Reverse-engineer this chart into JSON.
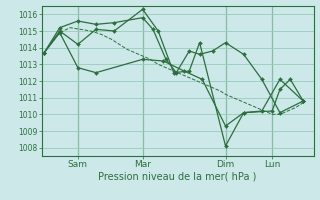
{
  "bg_color": "#cce8e8",
  "grid_color": "#99ccbb",
  "line_color": "#2d6e3e",
  "xlabel": "Pression niveau de la mer( hPa )",
  "ylim": [
    1007.5,
    1016.5
  ],
  "yticks": [
    1008,
    1009,
    1010,
    1011,
    1012,
    1013,
    1014,
    1015,
    1016
  ],
  "xtick_labels": [
    "Sam",
    "Mar",
    "Dim",
    "Lun"
  ],
  "vline_x": [
    0.13,
    0.38,
    0.7,
    0.88
  ],
  "series": [
    {
      "x": [
        0.0,
        0.06,
        0.1,
        0.14,
        0.18,
        0.22,
        0.26,
        0.29,
        0.32,
        0.35,
        0.38,
        0.41,
        0.44,
        0.47,
        0.5,
        0.53,
        0.56,
        0.59,
        0.62,
        0.65,
        0.68,
        0.7,
        0.73,
        0.76,
        0.79,
        0.82,
        0.85,
        0.88,
        0.91,
        0.94,
        0.97,
        1.0
      ],
      "y": [
        1013.7,
        1014.9,
        1015.2,
        1015.1,
        1015.0,
        1014.8,
        1014.5,
        1014.2,
        1013.9,
        1013.7,
        1013.5,
        1013.3,
        1013.0,
        1012.8,
        1012.6,
        1012.4,
        1012.2,
        1012.0,
        1011.8,
        1011.6,
        1011.4,
        1011.2,
        1011.0,
        1010.8,
        1010.6,
        1010.4,
        1010.2,
        1010.0,
        1010.0,
        1010.2,
        1010.4,
        1010.7
      ],
      "dashed": true,
      "has_markers": false
    },
    {
      "x": [
        0.0,
        0.06,
        0.13,
        0.2,
        0.38,
        0.46,
        0.54,
        0.61,
        0.7,
        0.77,
        0.84,
        0.91,
        1.0
      ],
      "y": [
        1013.7,
        1014.9,
        1012.8,
        1012.5,
        1013.3,
        1013.2,
        1012.6,
        1012.1,
        1009.3,
        1010.1,
        1010.2,
        1012.1,
        1010.8
      ],
      "dashed": false,
      "has_markers": true
    },
    {
      "x": [
        0.0,
        0.06,
        0.13,
        0.2,
        0.27,
        0.38,
        0.44,
        0.5,
        0.56,
        0.6,
        0.7,
        0.77,
        0.88,
        0.91,
        0.95,
        1.0
      ],
      "y": [
        1013.7,
        1015.0,
        1014.2,
        1015.1,
        1015.0,
        1016.3,
        1015.0,
        1012.5,
        1012.6,
        1014.3,
        1008.1,
        1010.1,
        1010.2,
        1011.5,
        1012.1,
        1010.8
      ],
      "dashed": false,
      "has_markers": true
    },
    {
      "x": [
        0.0,
        0.06,
        0.13,
        0.2,
        0.27,
        0.38,
        0.42,
        0.47,
        0.51,
        0.56,
        0.6,
        0.65,
        0.7,
        0.77,
        0.84,
        0.91,
        1.0
      ],
      "y": [
        1013.7,
        1015.2,
        1015.6,
        1015.4,
        1015.5,
        1015.8,
        1015.1,
        1013.3,
        1012.5,
        1013.8,
        1013.6,
        1013.8,
        1014.3,
        1013.6,
        1012.1,
        1010.1,
        1010.8
      ],
      "dashed": false,
      "has_markers": true
    }
  ]
}
